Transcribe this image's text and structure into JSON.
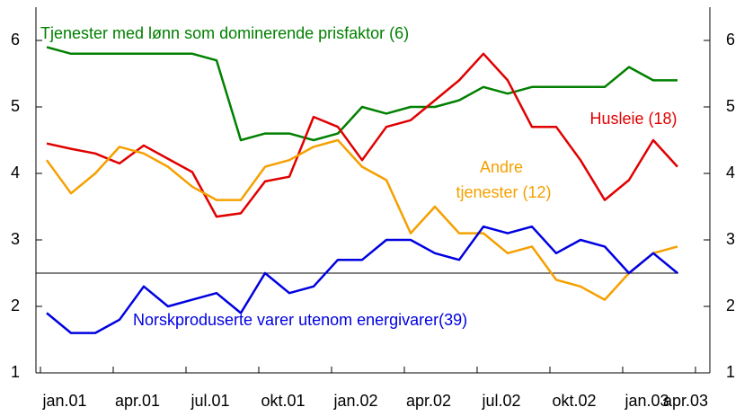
{
  "chart_data": {
    "type": "line",
    "categories": [
      "jan.01",
      null,
      null,
      "apr.01",
      null,
      null,
      "jul.01",
      null,
      null,
      "okt.01",
      null,
      null,
      "jan.02",
      null,
      null,
      "apr.02",
      null,
      null,
      "jul.02",
      null,
      null,
      "okt.02",
      null,
      null,
      "jan.03",
      null,
      null,
      "apr.03"
    ],
    "series": [
      {
        "name": "Tjenester med lønn som dominerende prisfaktor (6)",
        "color": "#008000",
        "values": [
          5.9,
          5.8,
          5.8,
          5.8,
          5.8,
          5.8,
          5.8,
          5.7,
          4.5,
          4.6,
          4.6,
          4.5,
          4.6,
          5.0,
          4.9,
          5.0,
          5.0,
          5.1,
          5.3,
          5.2,
          5.3,
          5.3,
          5.3,
          5.3,
          5.6,
          5.4,
          5.4,
          null
        ]
      },
      {
        "name": "Husleie (18)",
        "color": "#e00000",
        "values": [
          4.45,
          4.37,
          4.3,
          4.15,
          4.42,
          4.22,
          4.02,
          3.35,
          3.4,
          3.88,
          3.95,
          4.85,
          4.7,
          4.2,
          4.7,
          4.8,
          5.1,
          5.4,
          5.8,
          5.4,
          4.7,
          4.7,
          4.2,
          3.6,
          3.9,
          4.5,
          4.1,
          null
        ]
      },
      {
        "name": "Andre tjenester (12)",
        "color": "#f5a000",
        "values": [
          4.2,
          3.7,
          4.0,
          4.4,
          4.3,
          4.1,
          3.8,
          3.6,
          3.6,
          4.1,
          4.2,
          4.4,
          4.5,
          4.1,
          3.9,
          3.1,
          3.5,
          3.1,
          3.1,
          2.8,
          2.9,
          2.4,
          2.3,
          2.1,
          2.5,
          2.8,
          2.9,
          null
        ]
      },
      {
        "name": "Norskproduserte varer utenom energivarer(39)",
        "color": "#0000e0",
        "values": [
          1.9,
          1.6,
          1.6,
          1.8,
          2.3,
          2.0,
          2.1,
          2.2,
          1.9,
          2.5,
          2.2,
          2.3,
          2.7,
          2.7,
          3.0,
          3.0,
          2.8,
          2.7,
          3.2,
          3.1,
          3.2,
          2.8,
          3.0,
          2.9,
          2.5,
          2.8,
          2.5,
          null
        ]
      }
    ],
    "hline": 2.5,
    "ylim": [
      1,
      6.5
    ],
    "yticks": [
      1,
      2,
      3,
      4,
      5,
      6
    ]
  }
}
